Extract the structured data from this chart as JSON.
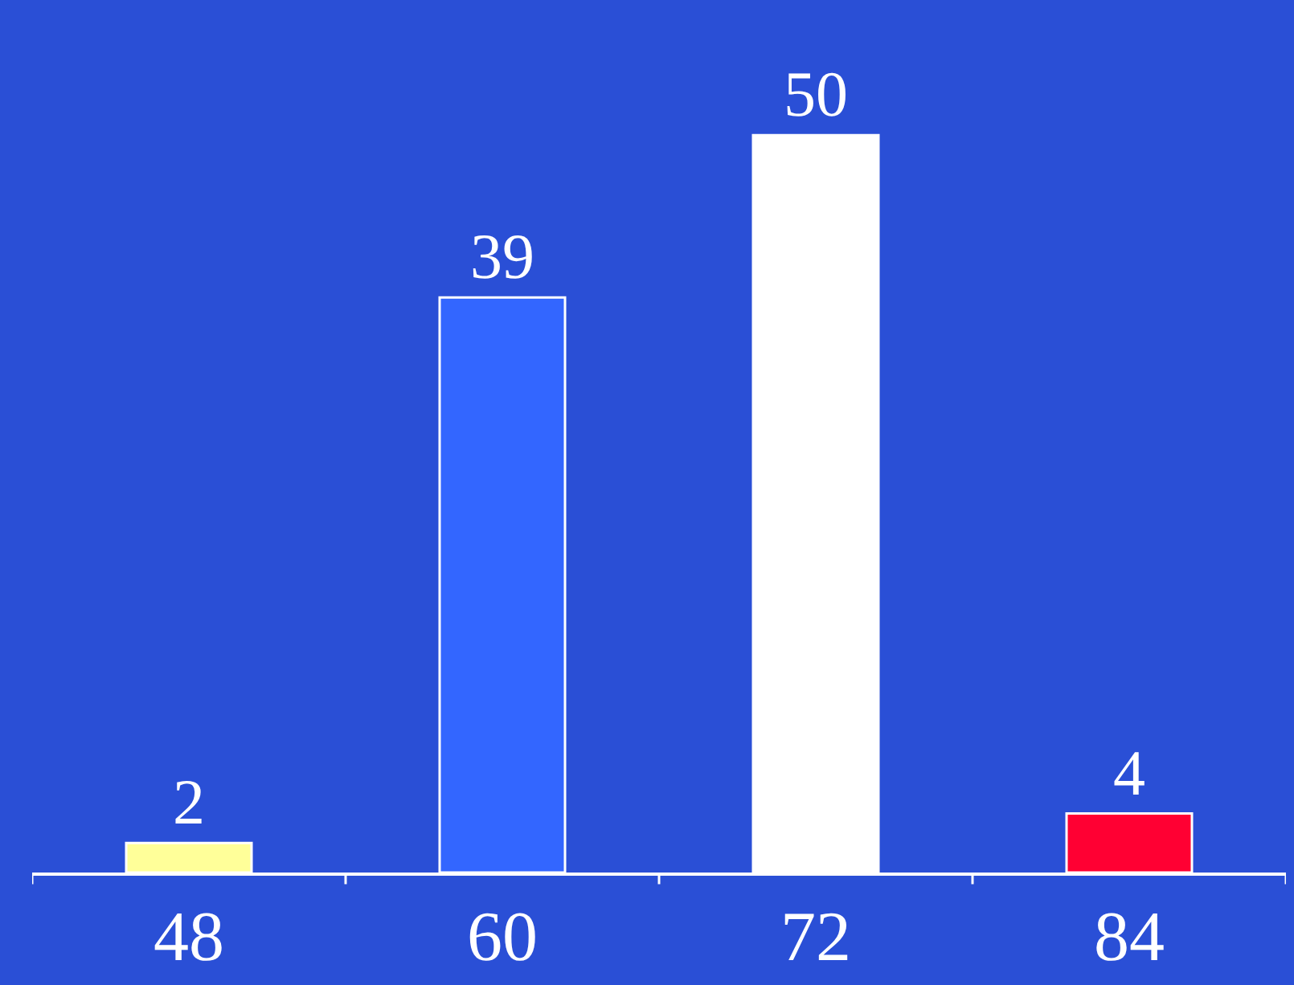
{
  "chart_data": {
    "type": "bar",
    "categories": [
      "48",
      "60",
      "72",
      "84"
    ],
    "values": [
      2,
      39,
      50,
      4
    ],
    "colors": [
      "#ffff99",
      "#3366ff",
      "#ffffff",
      "#ff0033"
    ],
    "data_labels": true,
    "grid": false,
    "legend": false
  }
}
